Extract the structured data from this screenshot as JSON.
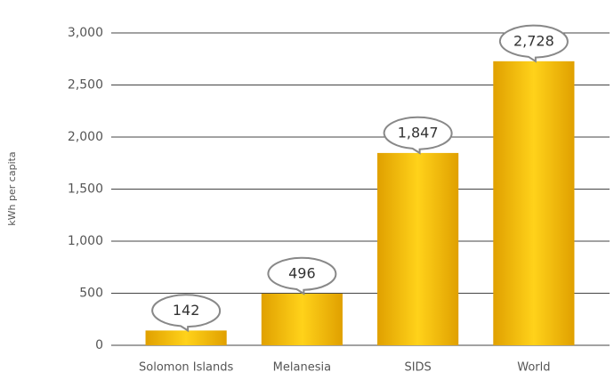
{
  "chart_data": {
    "type": "bar",
    "y_label": "kWh per capita",
    "categories": [
      "Solomon Islands",
      "Melanesia",
      "SIDS",
      "World"
    ],
    "values": [
      142,
      496,
      1847,
      2728
    ],
    "value_labels": [
      "142",
      "496",
      "1,847",
      "2,728"
    ],
    "ylim": [
      0,
      3000
    ],
    "yticks": [
      0,
      500,
      {
        "value": 1000,
        "label": "1,000"
      },
      {
        "value": 1500,
        "label": "1,500"
      },
      {
        "value": 2000,
        "label": "2,000"
      },
      {
        "value": 2500,
        "label": "2,500"
      },
      {
        "value": 3000,
        "label": "3,000"
      }
    ],
    "grid": true
  }
}
